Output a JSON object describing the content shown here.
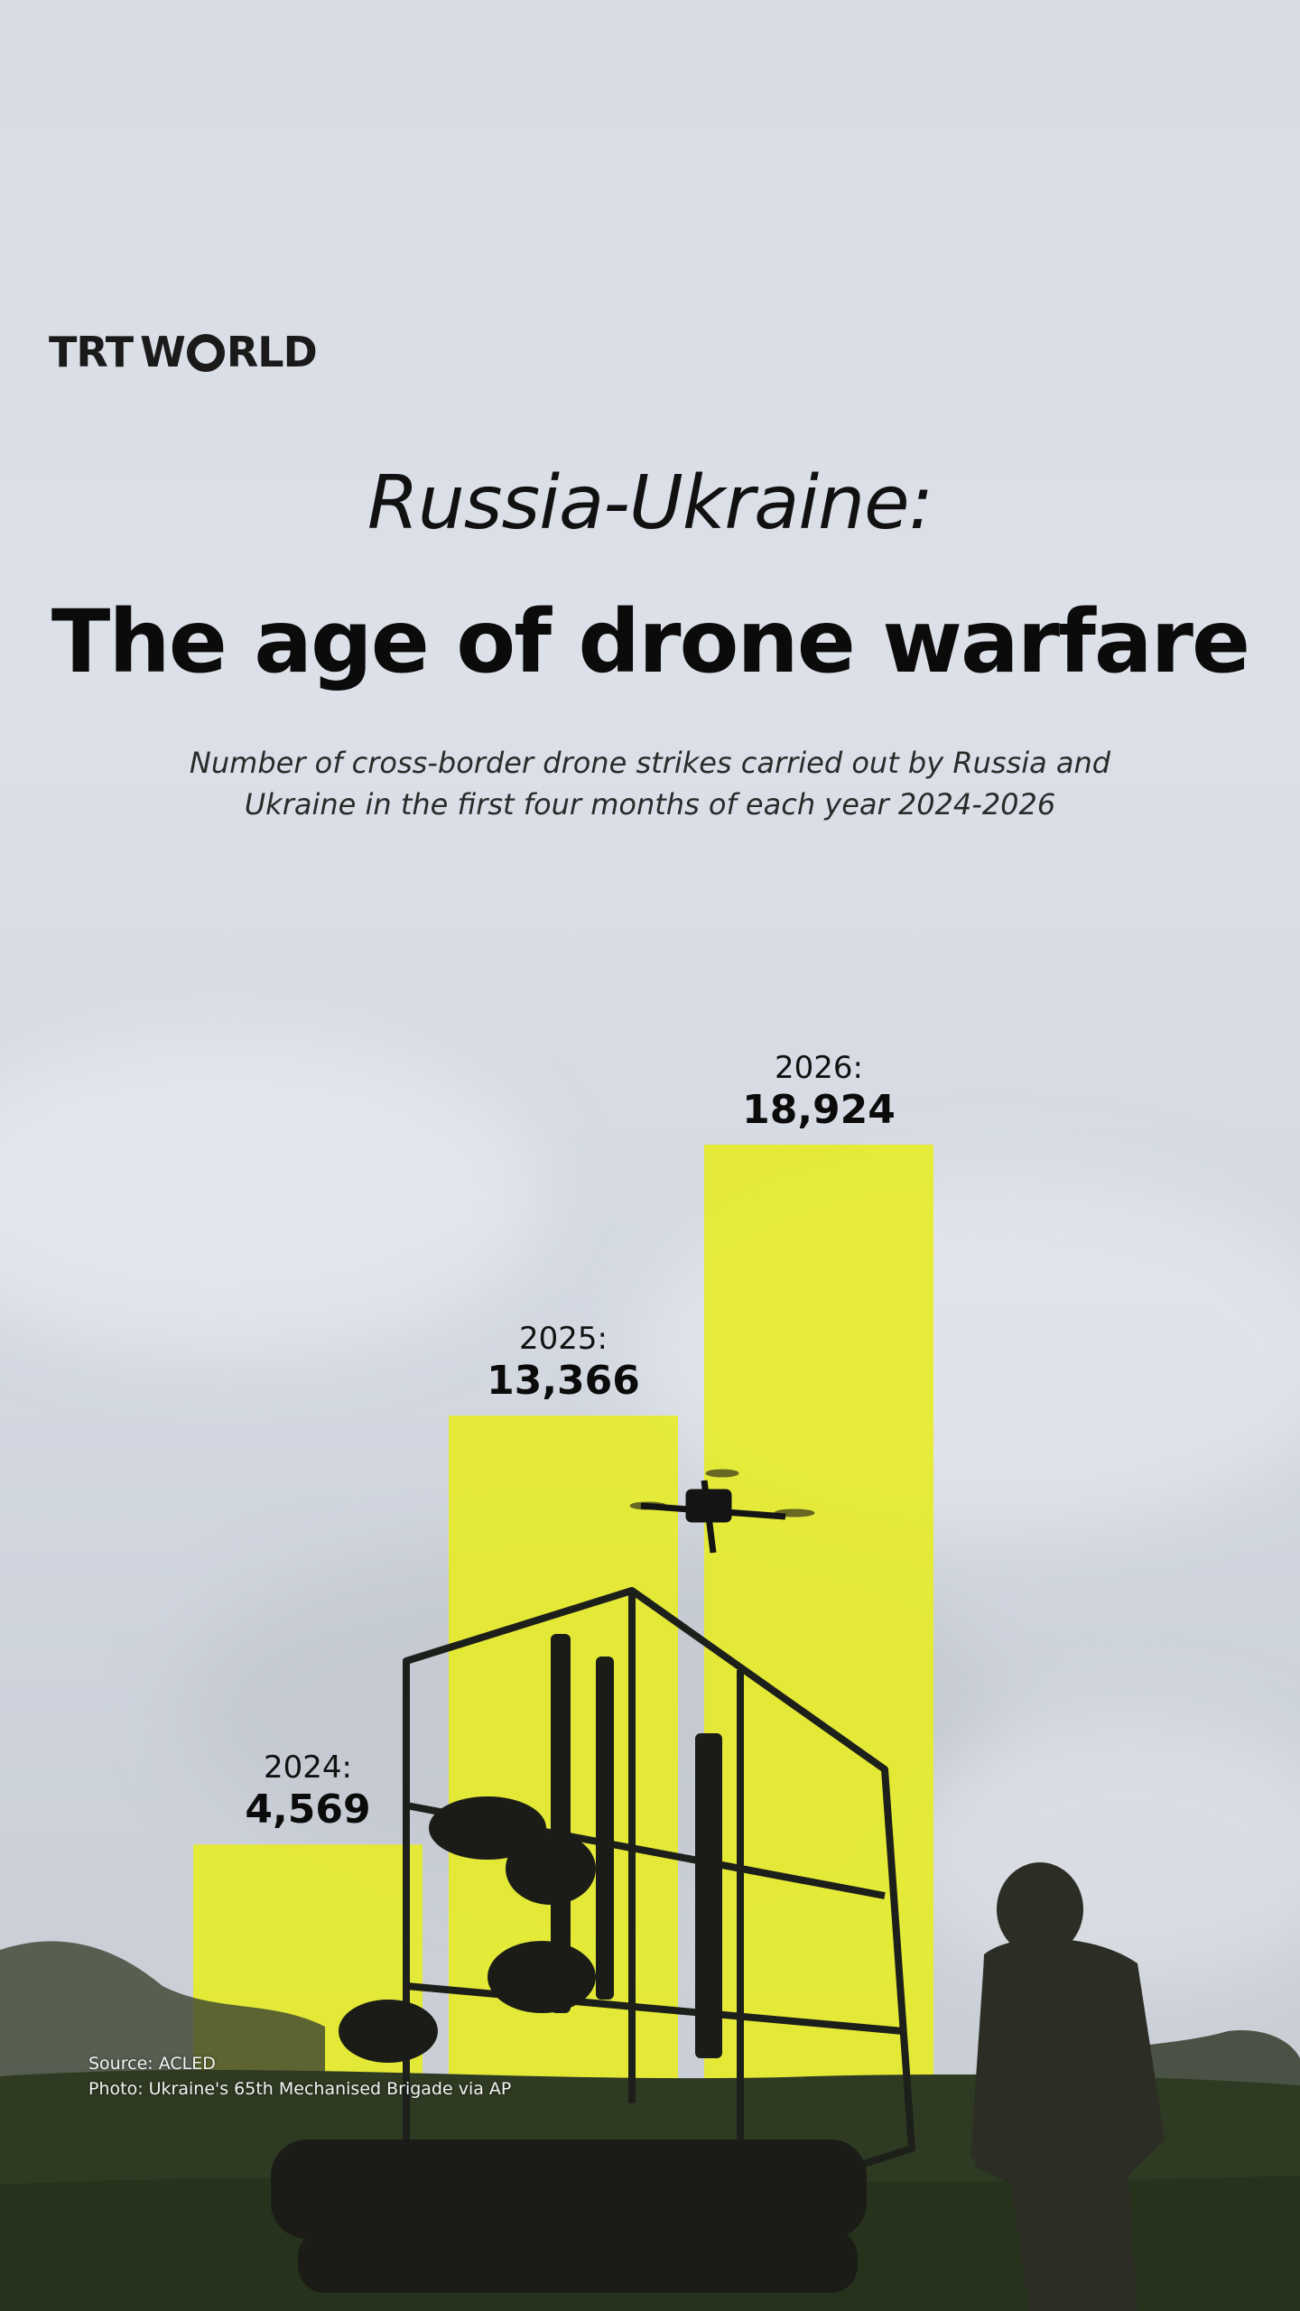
{
  "brand": {
    "logo_left": "TRT",
    "logo_right": "WRLD",
    "logo_alt": "TRTWORLD"
  },
  "header": {
    "kicker": "Russia-Ukraine:",
    "title": "The age of drone warfare",
    "subtitle": "Number of cross-border drone strikes carried out by Russia and Ukraine in the first four months of each year 2024-2026"
  },
  "footer": {
    "source": "Source: ACLED",
    "photo_credit": "Photo: Ukraine's 65th Mechanised Brigade via AP"
  },
  "colors": {
    "bar": "#e6eb2a",
    "text": "#0b0b0b",
    "grass": "#2f3a22"
  },
  "chart_data": {
    "type": "bar",
    "categories": [
      "2024:",
      "2025:",
      "2026:"
    ],
    "values": [
      4569,
      13366,
      18924
    ],
    "value_labels": [
      "4,569",
      "13,366",
      "18,924"
    ],
    "title": "The age of drone warfare",
    "subtitle": "Number of cross-border drone strikes carried out by Russia and Ukraine in the first four months of each year 2024-2026",
    "xlabel": "",
    "ylabel": "",
    "ylim": [
      0,
      18924
    ],
    "grid": false,
    "legend": "none"
  }
}
